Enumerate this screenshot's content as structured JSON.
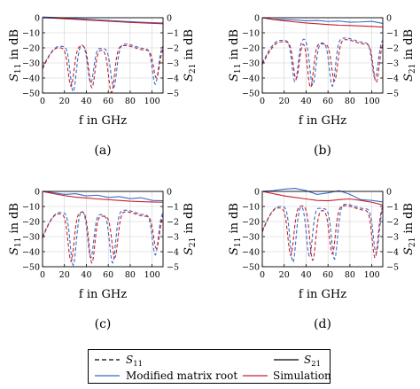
{
  "colors": {
    "modified": "#3a6bc4",
    "simulation": "#c8202c",
    "neutral": "#000000",
    "grid": "#d0d0d0"
  },
  "axes": {
    "x_label_text": "f in GHz",
    "y_left_label": {
      "base": "S",
      "sub": "11",
      "rest": " in dB"
    },
    "y_right_label": {
      "base": "S",
      "sub": "21",
      "rest": " in dB"
    },
    "x_ticks": [
      "0",
      "20",
      "40",
      "60",
      "80",
      "100"
    ],
    "y_left_ticks": [
      "0",
      "−10",
      "−20",
      "−30",
      "−40",
      "−50"
    ],
    "y_right_ticks": [
      "0",
      "−1",
      "−2",
      "−3",
      "−4",
      "−5"
    ]
  },
  "legend": {
    "s11": {
      "base": "S",
      "sub": "11"
    },
    "s21": {
      "base": "S",
      "sub": "21"
    },
    "modified": "Modified matrix root",
    "simulation": "Simulation"
  },
  "chart_data": [
    {
      "type": "line",
      "caption": "(a)",
      "x_range": [
        0,
        110
      ],
      "ylim_left": [
        -50,
        0
      ],
      "ylim_right": [
        -5,
        0
      ],
      "grid": true,
      "s21": {
        "modified": {
          "x": [
            0,
            10,
            20,
            30,
            40,
            50,
            60,
            70,
            80,
            90,
            100,
            110
          ],
          "y": [
            0.05,
            0.02,
            -0.02,
            -0.06,
            -0.1,
            -0.14,
            -0.18,
            -0.22,
            -0.26,
            -0.3,
            -0.33,
            -0.35
          ]
        },
        "simulation": {
          "x": [
            0,
            10,
            20,
            30,
            40,
            50,
            60,
            70,
            80,
            90,
            100,
            110
          ],
          "y": [
            0.0,
            -0.03,
            -0.07,
            -0.11,
            -0.15,
            -0.19,
            -0.23,
            -0.27,
            -0.31,
            -0.34,
            -0.37,
            -0.4
          ]
        }
      },
      "s11": {
        "modified": {
          "dips": [
            [
              28,
              -49
            ],
            [
              44,
              -44
            ],
            [
              65,
              -46
            ],
            [
              103,
              -44
            ]
          ],
          "ripple": -19,
          "start": -33,
          "end": -18
        },
        "simulation": {
          "dips": [
            [
              26,
              -45
            ],
            [
              45,
              -47
            ],
            [
              63,
              -49
            ],
            [
              104,
              -40
            ]
          ],
          "ripple": -20,
          "start": -34,
          "end": -19
        }
      }
    },
    {
      "type": "line",
      "caption": "(b)",
      "x_range": [
        0,
        110
      ],
      "ylim_left": [
        -50,
        0
      ],
      "ylim_right": [
        -5,
        0
      ],
      "grid": true,
      "s21": {
        "modified": {
          "x": [
            0,
            10,
            20,
            30,
            40,
            50,
            60,
            70,
            80,
            90,
            100,
            110
          ],
          "y": [
            0.0,
            -0.1,
            -0.12,
            -0.15,
            -0.2,
            -0.18,
            -0.25,
            -0.22,
            -0.3,
            -0.28,
            -0.24,
            -0.38
          ]
        },
        "simulation": {
          "x": [
            0,
            10,
            20,
            30,
            40,
            50,
            60,
            70,
            80,
            90,
            100,
            110
          ],
          "y": [
            0.0,
            -0.12,
            -0.2,
            -0.28,
            -0.35,
            -0.4,
            -0.45,
            -0.5,
            -0.52,
            -0.55,
            -0.58,
            -0.62
          ]
        }
      },
      "s11": {
        "modified": {
          "dips": [
            [
              30,
              -43
            ],
            [
              46,
              -45
            ],
            [
              64,
              -45
            ],
            [
              103,
              -40
            ]
          ],
          "ripple": -15,
          "start": -30,
          "end": -14
        },
        "simulation": {
          "dips": [
            [
              31,
              -41
            ],
            [
              44,
              -47
            ],
            [
              66,
              -42
            ],
            [
              104,
              -43
            ]
          ],
          "ripple": -16,
          "start": -31,
          "end": -15
        }
      }
    },
    {
      "type": "line",
      "caption": "(c)",
      "x_range": [
        0,
        110
      ],
      "ylim_left": [
        -50,
        0
      ],
      "ylim_right": [
        -5,
        0
      ],
      "grid": true,
      "s21": {
        "modified": {
          "x": [
            0,
            10,
            20,
            30,
            40,
            50,
            60,
            70,
            80,
            90,
            100,
            110
          ],
          "y": [
            0.0,
            -0.08,
            -0.2,
            -0.15,
            -0.3,
            -0.25,
            -0.4,
            -0.35,
            -0.48,
            -0.42,
            -0.6,
            -0.62
          ]
        },
        "simulation": {
          "x": [
            0,
            10,
            20,
            30,
            40,
            50,
            60,
            70,
            80,
            90,
            100,
            110
          ],
          "y": [
            0.0,
            -0.15,
            -0.28,
            -0.38,
            -0.44,
            -0.5,
            -0.55,
            -0.6,
            -0.65,
            -0.68,
            -0.7,
            -0.72
          ]
        }
      },
      "s11": {
        "modified": {
          "dips": [
            [
              28,
              -49
            ],
            [
              44,
              -45
            ],
            [
              64,
              -47
            ],
            [
              103,
              -42
            ]
          ],
          "ripple": -14,
          "start": -30,
          "end": -13
        },
        "simulation": {
          "dips": [
            [
              26,
              -46
            ],
            [
              45,
              -48
            ],
            [
              66,
              -44
            ],
            [
              104,
              -38
            ]
          ],
          "ripple": -15,
          "start": -31,
          "end": -14
        }
      }
    },
    {
      "type": "line",
      "caption": "(d)",
      "x_range": [
        0,
        110
      ],
      "ylim_left": [
        -50,
        0
      ],
      "ylim_right": [
        -5,
        0
      ],
      "grid": true,
      "s21": {
        "modified": {
          "x": [
            0,
            10,
            20,
            30,
            40,
            50,
            60,
            70,
            80,
            90,
            100,
            110
          ],
          "y": [
            0.0,
            0.05,
            0.15,
            0.2,
            0.05,
            -0.2,
            -0.1,
            0.05,
            -0.2,
            -0.55,
            -0.6,
            -0.7
          ]
        },
        "simulation": {
          "x": [
            0,
            10,
            20,
            30,
            40,
            50,
            60,
            70,
            80,
            90,
            100,
            110
          ],
          "y": [
            0.0,
            -0.15,
            -0.3,
            -0.4,
            -0.5,
            -0.6,
            -0.62,
            -0.55,
            -0.5,
            -0.6,
            -0.72,
            -0.9
          ]
        }
      },
      "s11": {
        "modified": {
          "dips": [
            [
              28,
              -47
            ],
            [
              43,
              -44
            ],
            [
              66,
              -45
            ],
            [
              104,
              -41
            ]
          ],
          "ripple": -10,
          "start": -26,
          "end": -8
        },
        "simulation": {
          "dips": [
            [
              26,
              -42
            ],
            [
              46,
              -46
            ],
            [
              64,
              -41
            ],
            [
              103,
              -44
            ]
          ],
          "ripple": -11,
          "start": -27,
          "end": -9
        }
      }
    }
  ]
}
